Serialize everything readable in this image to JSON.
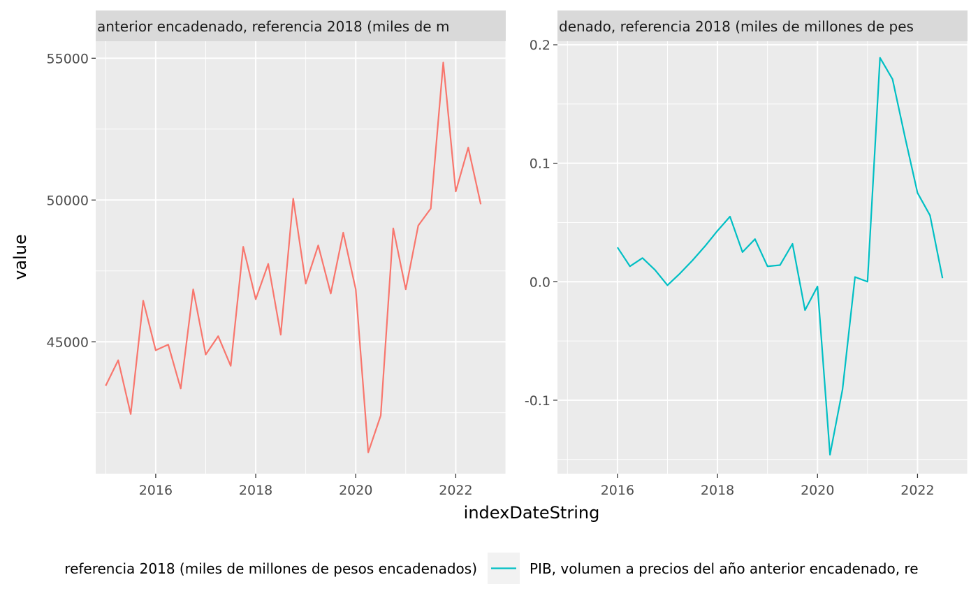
{
  "chart_data": {
    "type": "line",
    "xlabel": "indexDateString",
    "ylabel": "value",
    "x_ticks": [
      "2016",
      "2018",
      "2020",
      "2022"
    ],
    "x": [
      2015.0,
      2015.25,
      2015.5,
      2015.75,
      2016.0,
      2016.25,
      2016.5,
      2016.75,
      2017.0,
      2017.25,
      2017.5,
      2017.75,
      2018.0,
      2018.25,
      2018.5,
      2018.75,
      2019.0,
      2019.25,
      2019.5,
      2019.75,
      2020.0,
      2020.25,
      2020.5,
      2020.75,
      2021.0,
      2021.25,
      2021.5,
      2021.75,
      2022.0,
      2022.25,
      2022.5
    ],
    "panels": [
      {
        "strip": "anterior encadenado, referencia 2018 (miles de m",
        "color": "#F8766D",
        "xlim": [
          2014.8,
          2023.0
        ],
        "ylim": [
          40350,
          55600
        ],
        "y_ticks": [
          45000,
          50000,
          55000
        ],
        "y_tick_labels": [
          "45000",
          "50000",
          "55000"
        ],
        "values": [
          43450,
          44350,
          42450,
          46450,
          44700,
          44900,
          43350,
          46850,
          44550,
          45200,
          44150,
          48350,
          46500,
          47750,
          45250,
          50050,
          47050,
          48400,
          46700,
          48850,
          46850,
          41100,
          42400,
          49000,
          46850,
          49100,
          49700,
          54850,
          50300,
          51850,
          49850
        ]
      },
      {
        "strip": "denado, referencia 2018 (miles de millones de pes",
        "color": "#00BFC4",
        "xlim": [
          2014.8,
          2023.0
        ],
        "ylim": [
          -0.162,
          0.203
        ],
        "y_ticks": [
          -0.1,
          0.0,
          0.1,
          0.2
        ],
        "y_tick_labels": [
          "-0.1",
          "0.0",
          "0.1",
          "0.2"
        ],
        "values": [
          null,
          null,
          null,
          null,
          0.029,
          0.013,
          0.02,
          0.01,
          -0.003,
          0.007,
          0.018,
          0.03,
          0.043,
          0.055,
          0.025,
          0.036,
          0.013,
          0.014,
          0.032,
          -0.024,
          -0.004,
          -0.146,
          -0.091,
          0.004,
          0.0,
          0.189,
          0.171,
          0.122,
          0.075,
          0.056,
          0.003
        ]
      }
    ],
    "legend": {
      "position": "bottom",
      "entries": [
        {
          "label": "referencia 2018 (miles de millones de pesos encadenados)",
          "color": "#F8766D"
        },
        {
          "label": "PIB, volumen a precios del año anterior encadenado, re",
          "color": "#00BFC4"
        }
      ]
    },
    "grid": true
  }
}
